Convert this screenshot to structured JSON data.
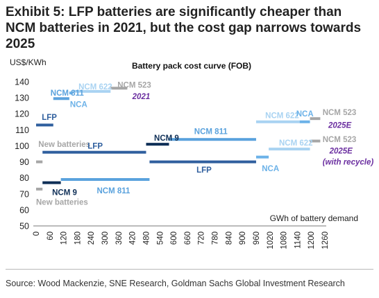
{
  "exhibit": {
    "title": "Exhibit 5: LFP batteries are significantly cheaper than NCM batteries in 2021, but the cost gap narrows towards 2025"
  },
  "source": "Source: Wood Mackenzie, SNE Research, Goldman Sachs Global Investment Research",
  "chart_data": {
    "type": "line",
    "title": "Battery pack cost curve (FOB)",
    "ylabel": "US$/KWh",
    "xlabel": "GWh of battery demand",
    "ylim": [
      50,
      140
    ],
    "yticks": [
      50,
      60,
      70,
      80,
      90,
      100,
      110,
      120,
      130,
      140
    ],
    "xlim": [
      0,
      1260
    ],
    "xticks": [
      0,
      60,
      120,
      180,
      240,
      300,
      360,
      420,
      480,
      540,
      600,
      660,
      720,
      780,
      840,
      900,
      960,
      1020,
      1080,
      1140,
      1200,
      1260
    ],
    "grid": false,
    "colors": {
      "ncm811": "#5aa2dd",
      "ncm622": "#a9d3f2",
      "ncm523": "#a6a6a6",
      "lfp": "#2f5f9e",
      "ncm9": "#0f2f57",
      "nca": "#6cb2e8",
      "new": "#a6a6a6",
      "scenario": "#6b2fa0"
    },
    "series": [
      {
        "name": "2021",
        "segments": [
          {
            "label": "LFP",
            "color_key": "lfp",
            "x": [
              0,
              75
            ],
            "y": 113
          },
          {
            "label": "NCM 811",
            "color_key": "ncm811",
            "x": [
              75,
              145
            ],
            "y": 129.5
          },
          {
            "label": "NCA",
            "color_key": "nca",
            "x": [
              145,
              160
            ],
            "y": 133
          },
          {
            "label": "NCM 622",
            "color_key": "ncm622",
            "x": [
              160,
              325
            ],
            "y": 134
          },
          {
            "label": "NCM 523",
            "color_key": "ncm523",
            "x": [
              325,
              398
            ],
            "y": 136
          }
        ]
      },
      {
        "name": "2025E",
        "segments": [
          {
            "label": "New batteries",
            "color_key": "new",
            "x": [
              0,
              28
            ],
            "y": 90
          },
          {
            "label": "LFP",
            "color_key": "lfp",
            "x": [
              28,
              480
            ],
            "y": 96
          },
          {
            "label": "NCM 9",
            "color_key": "ncm9",
            "x": [
              480,
              580
            ],
            "y": 101
          },
          {
            "label": "NCM 811",
            "color_key": "ncm811",
            "x": [
              580,
              960
            ],
            "y": 104
          },
          {
            "label": "NCM 622",
            "color_key": "ncm622",
            "x": [
              960,
              1150
            ],
            "y": 115
          },
          {
            "label": "NCA",
            "color_key": "nca",
            "x": [
              1150,
              1195
            ],
            "y": 115
          },
          {
            "label": "NCM 523",
            "color_key": "ncm523",
            "x": [
              1195,
              1240
            ],
            "y": 117
          }
        ]
      },
      {
        "name": "2025E (with recycle)",
        "segments": [
          {
            "label": "New batteries",
            "color_key": "new",
            "x": [
              0,
              28
            ],
            "y": 73
          },
          {
            "label": "NCM 9",
            "color_key": "ncm9",
            "x": [
              28,
              108
            ],
            "y": 77
          },
          {
            "label": "NCM 811",
            "color_key": "ncm811",
            "x": [
              108,
              495
            ],
            "y": 79
          },
          {
            "label": "LFP",
            "color_key": "lfp",
            "x": [
              495,
              960
            ],
            "y": 90
          },
          {
            "label": "NCA",
            "color_key": "nca",
            "x": [
              960,
              1015
            ],
            "y": 93
          },
          {
            "label": "NCM 622",
            "color_key": "ncm622",
            "x": [
              1015,
              1195
            ],
            "y": 98
          },
          {
            "label": "NCM 523",
            "color_key": "ncm523",
            "x": [
              1195,
              1240
            ],
            "y": 103
          }
        ]
      }
    ],
    "annotations": [
      {
        "text": "LFP",
        "color_key": "lfp",
        "x": 25,
        "y": 118
      },
      {
        "text": "NCM 811",
        "color_key": "ncm811",
        "x": 63,
        "y": 133
      },
      {
        "text": "NCA",
        "color_key": "nca",
        "x": 148,
        "y": 126
      },
      {
        "text": "NCM 622",
        "color_key": "ncm622",
        "x": 185,
        "y": 137
      },
      {
        "text": "NCM 523",
        "color_key": "ncm523",
        "x": 355,
        "y": 138
      },
      {
        "text": "2021",
        "color_key": "scenario",
        "x": 420,
        "y": 131,
        "italic": true
      },
      {
        "text": "New batteries",
        "color_key": "new",
        "x": 10,
        "y": 101
      },
      {
        "text": "LFP",
        "color_key": "lfp",
        "x": 225,
        "y": 100
      },
      {
        "text": "NCM 9",
        "color_key": "ncm9",
        "x": 515,
        "y": 105
      },
      {
        "text": "NCM 811",
        "color_key": "ncm811",
        "x": 690,
        "y": 109
      },
      {
        "text": "NCM 622",
        "color_key": "ncm622",
        "x": 1000,
        "y": 119
      },
      {
        "text": "NCA",
        "color_key": "nca",
        "x": 1135,
        "y": 120
      },
      {
        "text": "NCM 523",
        "color_key": "ncm523",
        "x": 1250,
        "y": 121
      },
      {
        "text": "2025E",
        "color_key": "scenario",
        "x": 1275,
        "y": 113,
        "italic": true
      },
      {
        "text": "NCM 9",
        "color_key": "ncm9",
        "x": 70,
        "y": 71
      },
      {
        "text": "NCM 811",
        "color_key": "ncm811",
        "x": 265,
        "y": 72
      },
      {
        "text": "New batteries",
        "color_key": "new",
        "x": 0,
        "y": 65
      },
      {
        "text": "LFP",
        "color_key": "lfp",
        "x": 700,
        "y": 85
      },
      {
        "text": "NCA",
        "color_key": "nca",
        "x": 985,
        "y": 86
      },
      {
        "text": "NCM 622",
        "color_key": "ncm622",
        "x": 1060,
        "y": 102
      },
      {
        "text": "NCM 523",
        "color_key": "ncm523",
        "x": 1250,
        "y": 104
      },
      {
        "text": "2025E",
        "color_key": "scenario",
        "x": 1280,
        "y": 97,
        "italic": true
      },
      {
        "text": "(with recycle)",
        "color_key": "scenario",
        "x": 1250,
        "y": 90,
        "italic": true
      }
    ]
  }
}
